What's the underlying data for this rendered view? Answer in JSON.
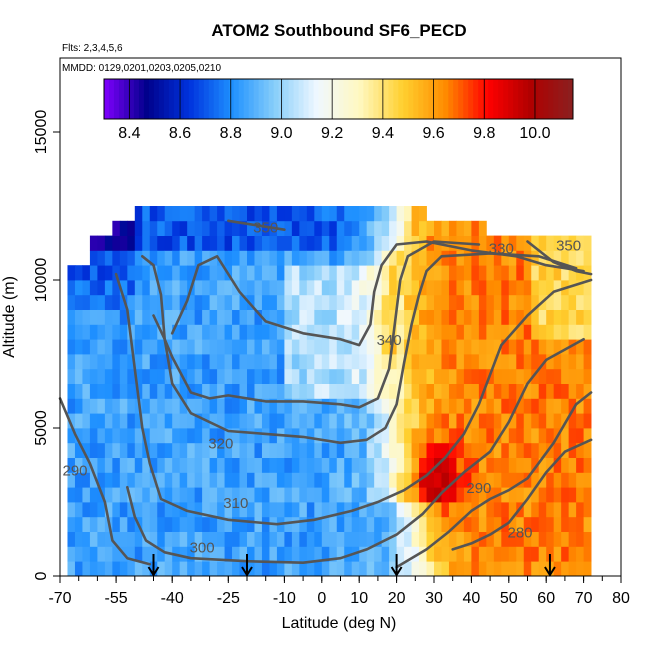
{
  "chart_data": {
    "type": "heatmap",
    "title": "ATOM2 Southbound SF6_PECD",
    "annotations": [
      "Flts: 2,3,4,5,6",
      "MMDD: 0129,0201,0203,0205,0210"
    ],
    "xlabel": "Latitude (deg N)",
    "ylabel": "Altitude (m)",
    "xlim": [
      -70,
      80
    ],
    "ylim": [
      0,
      17500
    ],
    "x_ticks": [
      -70,
      -55,
      -40,
      -25,
      -10,
      0,
      10,
      20,
      30,
      40,
      50,
      60,
      70,
      80
    ],
    "x_tick_labels": [
      "-70",
      "-55",
      "-40",
      "-25",
      "-10",
      "0",
      "10",
      "20",
      "30",
      "40",
      "50",
      "60",
      "70",
      "80"
    ],
    "y_ticks": [
      0,
      5000,
      10000,
      15000
    ],
    "y_tick_labels": [
      "0",
      "5000",
      "10000",
      "15000"
    ],
    "colorbar": {
      "range": [
        8.3,
        10.15
      ],
      "ticks": [
        8.4,
        8.6,
        8.8,
        9.0,
        9.2,
        9.4,
        9.6,
        9.8,
        10.0
      ],
      "tick_labels": [
        "8.4",
        "8.6",
        "8.8",
        "9.0",
        "9.2",
        "9.4",
        "9.6",
        "9.8",
        "10.0"
      ],
      "colors": [
        "#8000ff",
        "#00008b",
        "#0033dd",
        "#1e90ff",
        "#87cefa",
        "#f0f8ff",
        "#fff8c0",
        "#ffd030",
        "#ff8c00",
        "#ff0000",
        "#b00000",
        "#8b2020"
      ]
    },
    "field": {
      "description": "Gridded SF6 PECD along flight track; lat bins 2 deg, alt bins 500 m",
      "lat_start": -70,
      "lat_end": 72,
      "lat_step": 2,
      "alt_start": 0,
      "alt_end": 12500,
      "alt_step": 500,
      "southern_value": 8.85,
      "northern_value": 9.65,
      "transition_lat": 20,
      "max_value": 10.0,
      "max_lat": 30,
      "max_alt": 3200
    },
    "contours": [
      {
        "label": "290",
        "level": 290,
        "points": [
          [
            -70,
            6000
          ],
          [
            -66,
            4800
          ],
          [
            -62,
            3800
          ],
          [
            -58,
            2500
          ],
          [
            -56,
            1200
          ],
          [
            -52,
            600
          ],
          [
            -46,
            400
          ]
        ],
        "label_at": [
          -66,
          3400
        ]
      },
      {
        "label": "300",
        "level": 300,
        "points": [
          [
            -52,
            3000
          ],
          [
            -50,
            2000
          ],
          [
            -47,
            1200
          ],
          [
            -42,
            800
          ],
          [
            -35,
            600
          ],
          [
            -20,
            500
          ],
          [
            -5,
            450
          ],
          [
            5,
            600
          ],
          [
            12,
            900
          ],
          [
            20,
            1400
          ],
          [
            27,
            2100
          ],
          [
            32,
            2800
          ],
          [
            38,
            3500
          ],
          [
            45,
            4200
          ],
          [
            50,
            5200
          ],
          [
            55,
            6500
          ],
          [
            60,
            7300
          ],
          [
            70,
            8000
          ]
        ],
        "label_at": [
          -32,
          800
        ]
      },
      {
        "label": "310",
        "level": 310,
        "points": [
          [
            -55,
            10200
          ],
          [
            -52,
            9000
          ],
          [
            -50,
            7000
          ],
          [
            -48,
            5000
          ],
          [
            -46,
            3800
          ],
          [
            -43,
            2600
          ],
          [
            -36,
            2200
          ],
          [
            -25,
            1900
          ],
          [
            -12,
            1750
          ],
          [
            -2,
            1900
          ],
          [
            8,
            2200
          ],
          [
            15,
            2500
          ],
          [
            22,
            2900
          ],
          [
            28,
            3400
          ],
          [
            33,
            4000
          ],
          [
            38,
            4800
          ],
          [
            42,
            5800
          ],
          [
            45,
            6800
          ],
          [
            48,
            7800
          ],
          [
            55,
            8800
          ],
          [
            62,
            9600
          ],
          [
            72,
            10000
          ]
        ],
        "label_at": [
          -23,
          2300
        ]
      },
      {
        "label": "320",
        "level": 320,
        "points": [
          [
            -48,
            10800
          ],
          [
            -45,
            10500
          ],
          [
            -43,
            9500
          ],
          [
            -42,
            8000
          ],
          [
            -40,
            6500
          ],
          [
            -35,
            5500
          ],
          [
            -25,
            4900
          ],
          [
            -15,
            4800
          ],
          [
            -5,
            4700
          ],
          [
            5,
            4500
          ],
          [
            12,
            4600
          ],
          [
            17,
            5000
          ],
          [
            20,
            5800
          ],
          [
            22,
            7200
          ],
          [
            24,
            8500
          ],
          [
            26,
            9500
          ],
          [
            28,
            10300
          ],
          [
            32,
            10800
          ],
          [
            45,
            10900
          ],
          [
            58,
            10800
          ],
          [
            68,
            10400
          ]
        ],
        "label_at": [
          -27,
          4300
        ]
      },
      {
        "label": "340",
        "level": 340,
        "points": [
          [
            -40,
            8200
          ],
          [
            -36,
            9300
          ],
          [
            -33,
            10500
          ],
          [
            -28,
            10800
          ],
          [
            -22,
            9600
          ],
          [
            -15,
            8600
          ],
          [
            -5,
            8200
          ],
          [
            5,
            8000
          ],
          [
            10,
            7800
          ],
          [
            13,
            8500
          ],
          [
            14,
            9600
          ],
          [
            16,
            10500
          ],
          [
            20,
            11200
          ],
          [
            28,
            11300
          ],
          [
            40,
            11000
          ],
          [
            52,
            10800
          ],
          [
            60,
            10500
          ],
          [
            70,
            10300
          ]
        ],
        "label_at": [
          18,
          7800
        ]
      },
      {
        "label": "330",
        "level": 330,
        "points": [
          [
            -45,
            8800
          ],
          [
            -42,
            8000
          ],
          [
            -40,
            7400
          ],
          [
            -35,
            6200
          ],
          [
            -30,
            6000
          ],
          [
            -25,
            6100
          ],
          [
            -15,
            5900
          ],
          [
            -5,
            5900
          ],
          [
            5,
            5800
          ],
          [
            10,
            5700
          ],
          [
            15,
            6000
          ],
          [
            18,
            7000
          ],
          [
            19,
            8000
          ],
          [
            20,
            9000
          ],
          [
            21,
            10000
          ],
          [
            23,
            10800
          ],
          [
            30,
            11300
          ],
          [
            42,
            11200
          ]
        ],
        "label_at": [
          48,
          10900
        ]
      },
      {
        "label": "350",
        "level": 350,
        "points": [
          [
            -25,
            12000
          ],
          [
            -15,
            11800
          ],
          [
            -10,
            11700
          ]
        ],
        "label_at": [
          -15,
          11600
        ]
      },
      {
        "label": "350",
        "level": 350,
        "points": [
          [
            55,
            11300
          ],
          [
            62,
            10600
          ],
          [
            68,
            10300
          ],
          [
            72,
            10200
          ]
        ],
        "label_at": [
          66,
          11000
        ]
      },
      {
        "label": "280",
        "level": 280,
        "points": [
          [
            35,
            900
          ],
          [
            40,
            1100
          ],
          [
            45,
            1400
          ],
          [
            50,
            1800
          ],
          [
            55,
            2600
          ],
          [
            60,
            3500
          ],
          [
            65,
            4200
          ],
          [
            72,
            4600
          ]
        ],
        "label_at": [
          53,
          1300
        ]
      },
      {
        "label": "290",
        "level": 290,
        "points": [
          [
            20,
            300
          ],
          [
            28,
            900
          ],
          [
            34,
            1500
          ],
          [
            40,
            2200
          ],
          [
            45,
            2600
          ],
          [
            50,
            2900
          ],
          [
            55,
            3300
          ],
          [
            62,
            4500
          ],
          [
            68,
            5800
          ],
          [
            72,
            6200
          ]
        ],
        "label_at": [
          42,
          2800
        ]
      }
    ],
    "flight_markers": {
      "description": "Downward arrows at the bottom axis",
      "latitudes": [
        -45,
        -20,
        20,
        61
      ]
    }
  }
}
